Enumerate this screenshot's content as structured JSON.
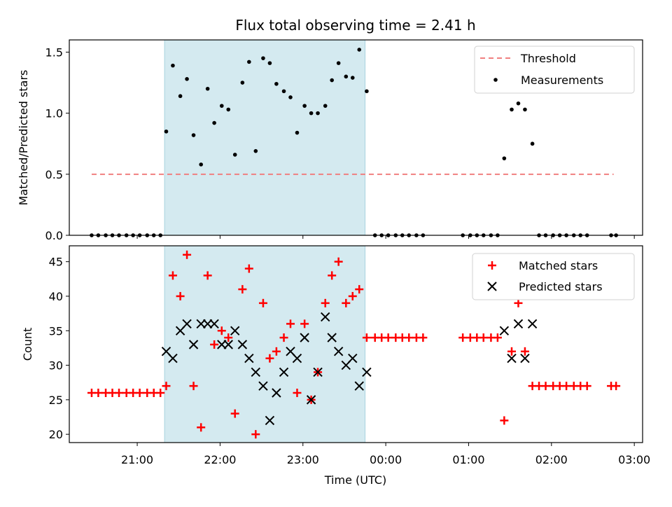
{
  "chart_data": [
    {
      "type": "scatter",
      "title": "Flux total observing time = 2.41 h",
      "xlabel": "",
      "ylabel": "Matched/Predicted stars",
      "ylim": [
        0,
        1.6
      ],
      "yticks": [
        "0.0",
        "0.5",
        "1.0",
        "1.5"
      ],
      "ytick_values": [
        0,
        0.5,
        1.0,
        1.5
      ],
      "legend_position": "top-right",
      "shaded_region": {
        "x_start": 21.33,
        "x_end": 23.75,
        "color": "#d4eaf0"
      },
      "threshold": {
        "name": "Threshold",
        "value": 0.5,
        "x_start": 20.45,
        "x_end": 26.75,
        "color": "#f08080"
      },
      "measurements": {
        "name": "Measurements",
        "x": [
          20.45,
          20.53,
          20.62,
          20.7,
          20.78,
          20.87,
          20.95,
          21.03,
          21.12,
          21.2,
          21.28,
          21.35,
          21.43,
          21.52,
          21.6,
          21.68,
          21.77,
          21.85,
          21.93,
          22.02,
          22.1,
          22.18,
          22.27,
          22.35,
          22.43,
          22.52,
          22.6,
          22.68,
          22.77,
          22.85,
          22.93,
          23.02,
          23.1,
          23.18,
          23.27,
          23.35,
          23.43,
          23.52,
          23.6,
          23.68,
          23.77,
          23.87,
          23.95,
          24.03,
          24.12,
          24.2,
          24.28,
          24.37,
          24.45,
          24.93,
          25.02,
          25.1,
          25.18,
          25.27,
          25.35,
          25.43,
          25.52,
          25.6,
          25.68,
          25.77,
          25.85,
          25.93,
          26.02,
          26.1,
          26.18,
          26.27,
          26.35,
          26.43,
          26.72,
          26.78
        ],
        "y": [
          0,
          0,
          0,
          0,
          0,
          0,
          0,
          0,
          0,
          0,
          0,
          0.85,
          1.39,
          1.14,
          1.28,
          0.82,
          0.58,
          1.2,
          0.92,
          1.06,
          1.03,
          0.66,
          1.25,
          1.42,
          0.69,
          1.45,
          1.41,
          1.24,
          1.18,
          1.13,
          0.84,
          1.06,
          1.0,
          1.0,
          1.06,
          1.27,
          1.41,
          1.3,
          1.29,
          1.52,
          1.18,
          0,
          0,
          0,
          0,
          0,
          0,
          0,
          0,
          0,
          0,
          0,
          0,
          0,
          0,
          0.63,
          1.03,
          1.08,
          1.03,
          0.75,
          0,
          0,
          0,
          0,
          0,
          0,
          0,
          0,
          0,
          0
        ]
      }
    },
    {
      "type": "scatter",
      "title": "",
      "xlabel": "Time (UTC)",
      "ylabel": "Count",
      "ylim": [
        18.8,
        47.3
      ],
      "yticks": [
        "20",
        "25",
        "30",
        "35",
        "40",
        "45"
      ],
      "ytick_values": [
        20,
        25,
        30,
        35,
        40,
        45
      ],
      "xticks": [
        "21:00",
        "22:00",
        "23:00",
        "00:00",
        "01:00",
        "02:00",
        "03:00"
      ],
      "xtick_values": [
        21,
        22,
        23,
        24,
        25,
        26,
        27
      ],
      "xlim": [
        20.18,
        27.1
      ],
      "legend_position": "top-right",
      "shaded_region": {
        "x_start": 21.33,
        "x_end": 23.75,
        "color": "#d4eaf0"
      },
      "series": [
        {
          "name": "Matched stars",
          "color": "#ff0000",
          "marker": "plus",
          "x": [
            20.45,
            20.53,
            20.62,
            20.7,
            20.78,
            20.87,
            20.95,
            21.03,
            21.12,
            21.2,
            21.28,
            21.35,
            21.43,
            21.52,
            21.6,
            21.68,
            21.77,
            21.85,
            21.93,
            22.02,
            22.1,
            22.18,
            22.27,
            22.35,
            22.43,
            22.52,
            22.6,
            22.68,
            22.77,
            22.85,
            22.93,
            23.02,
            23.1,
            23.18,
            23.27,
            23.35,
            23.43,
            23.52,
            23.6,
            23.68,
            23.77,
            23.87,
            23.95,
            24.03,
            24.12,
            24.2,
            24.28,
            24.37,
            24.45,
            24.93,
            25.02,
            25.1,
            25.18,
            25.27,
            25.35,
            25.43,
            25.52,
            25.6,
            25.68,
            25.77,
            25.85,
            25.93,
            26.02,
            26.1,
            26.18,
            26.27,
            26.35,
            26.43,
            26.72,
            26.78
          ],
          "y": [
            26,
            26,
            26,
            26,
            26,
            26,
            26,
            26,
            26,
            26,
            26,
            27,
            43,
            40,
            46,
            27,
            21,
            43,
            33,
            35,
            34,
            23,
            41,
            44,
            20,
            39,
            31,
            32,
            34,
            36,
            26,
            36,
            25,
            29,
            39,
            43,
            45,
            39,
            40,
            41,
            34,
            34,
            34,
            34,
            34,
            34,
            34,
            34,
            34,
            34,
            34,
            34,
            34,
            34,
            34,
            22,
            32,
            39,
            32,
            27,
            27,
            27,
            27,
            27,
            27,
            27,
            27,
            27,
            27,
            27
          ]
        },
        {
          "name": "Predicted stars",
          "color": "#000000",
          "marker": "x",
          "x": [
            21.35,
            21.43,
            21.52,
            21.6,
            21.68,
            21.77,
            21.85,
            21.93,
            22.02,
            22.1,
            22.18,
            22.27,
            22.35,
            22.43,
            22.52,
            22.6,
            22.68,
            22.77,
            22.85,
            22.93,
            23.02,
            23.1,
            23.18,
            23.27,
            23.35,
            23.43,
            23.52,
            23.6,
            23.68,
            23.77,
            25.43,
            25.52,
            25.6,
            25.68,
            25.77
          ],
          "y": [
            32,
            31,
            35,
            36,
            33,
            36,
            36,
            36,
            33,
            33,
            35,
            33,
            31,
            29,
            27,
            22,
            26,
            29,
            32,
            31,
            34,
            25,
            29,
            37,
            34,
            32,
            30,
            31,
            27,
            29,
            35,
            31,
            36,
            31,
            36
          ]
        }
      ]
    }
  ]
}
